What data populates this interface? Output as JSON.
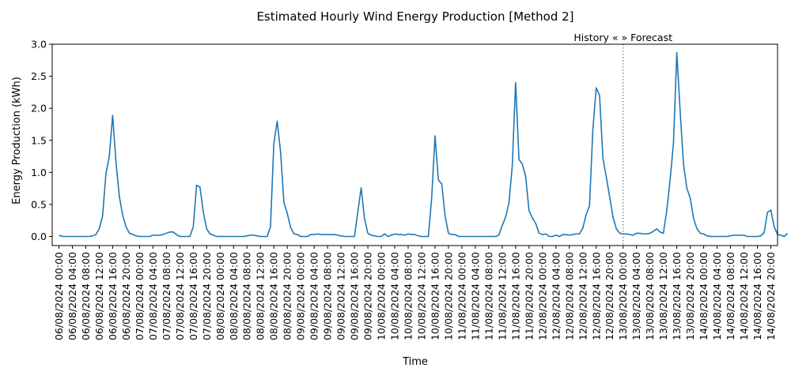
{
  "chart_data": {
    "type": "line",
    "title": "Estimated Hourly Wind Energy Production [Method 2]",
    "xlabel": "Time",
    "ylabel": "Energy Production (kWh)",
    "ylim": [
      -0.13,
      3.0
    ],
    "yticks": [
      "0.0",
      "0.5",
      "1.0",
      "1.5",
      "2.0",
      "2.5",
      "3.0"
    ],
    "x_start_hours": -2,
    "x_end_hours": 214,
    "grid": false,
    "annotation": {
      "label": "History «  » Forecast",
      "x_hours": 168
    },
    "xticks": [
      {
        "h": 0,
        "label": "06/08/2024 00:00"
      },
      {
        "h": 4,
        "label": "06/08/2024 04:00"
      },
      {
        "h": 8,
        "label": "06/08/2024 08:00"
      },
      {
        "h": 12,
        "label": "06/08/2024 12:00"
      },
      {
        "h": 16,
        "label": "06/08/2024 16:00"
      },
      {
        "h": 20,
        "label": "06/08/2024 20:00"
      },
      {
        "h": 24,
        "label": "07/08/2024 00:00"
      },
      {
        "h": 28,
        "label": "07/08/2024 04:00"
      },
      {
        "h": 32,
        "label": "07/08/2024 08:00"
      },
      {
        "h": 36,
        "label": "07/08/2024 12:00"
      },
      {
        "h": 40,
        "label": "07/08/2024 16:00"
      },
      {
        "h": 44,
        "label": "07/08/2024 20:00"
      },
      {
        "h": 48,
        "label": "08/08/2024 00:00"
      },
      {
        "h": 52,
        "label": "08/08/2024 04:00"
      },
      {
        "h": 56,
        "label": "08/08/2024 08:00"
      },
      {
        "h": 60,
        "label": "08/08/2024 12:00"
      },
      {
        "h": 64,
        "label": "08/08/2024 16:00"
      },
      {
        "h": 68,
        "label": "08/08/2024 20:00"
      },
      {
        "h": 72,
        "label": "09/08/2024 00:00"
      },
      {
        "h": 76,
        "label": "09/08/2024 04:00"
      },
      {
        "h": 80,
        "label": "09/08/2024 08:00"
      },
      {
        "h": 84,
        "label": "09/08/2024 12:00"
      },
      {
        "h": 88,
        "label": "09/08/2024 16:00"
      },
      {
        "h": 92,
        "label": "09/08/2024 20:00"
      },
      {
        "h": 96,
        "label": "10/08/2024 00:00"
      },
      {
        "h": 100,
        "label": "10/08/2024 04:00"
      },
      {
        "h": 104,
        "label": "10/08/2024 08:00"
      },
      {
        "h": 108,
        "label": "10/08/2024 12:00"
      },
      {
        "h": 112,
        "label": "10/08/2024 16:00"
      },
      {
        "h": 116,
        "label": "10/08/2024 20:00"
      },
      {
        "h": 120,
        "label": "11/08/2024 00:00"
      },
      {
        "h": 124,
        "label": "11/08/2024 04:00"
      },
      {
        "h": 128,
        "label": "11/08/2024 08:00"
      },
      {
        "h": 132,
        "label": "11/08/2024 12:00"
      },
      {
        "h": 136,
        "label": "11/08/2024 16:00"
      },
      {
        "h": 140,
        "label": "11/08/2024 20:00"
      },
      {
        "h": 144,
        "label": "12/08/2024 00:00"
      },
      {
        "h": 148,
        "label": "12/08/2024 04:00"
      },
      {
        "h": 152,
        "label": "12/08/2024 08:00"
      },
      {
        "h": 156,
        "label": "12/08/2024 12:00"
      },
      {
        "h": 160,
        "label": "12/08/2024 16:00"
      },
      {
        "h": 164,
        "label": "12/08/2024 20:00"
      },
      {
        "h": 168,
        "label": "13/08/2024 00:00"
      },
      {
        "h": 172,
        "label": "13/08/2024 04:00"
      },
      {
        "h": 176,
        "label": "13/08/2024 08:00"
      },
      {
        "h": 180,
        "label": "13/08/2024 12:00"
      },
      {
        "h": 184,
        "label": "13/08/2024 16:00"
      },
      {
        "h": 188,
        "label": "13/08/2024 20:00"
      },
      {
        "h": 192,
        "label": "14/08/2024 00:00"
      },
      {
        "h": 196,
        "label": "14/08/2024 04:00"
      },
      {
        "h": 200,
        "label": "14/08/2024 08:00"
      },
      {
        "h": 204,
        "label": "14/08/2024 12:00"
      },
      {
        "h": 208,
        "label": "14/08/2024 16:00"
      },
      {
        "h": 212,
        "label": "14/08/2024 20:00"
      }
    ],
    "series": [
      {
        "color": "#1f77b4",
        "values": [
          [
            0,
            0.02
          ],
          [
            1,
            0.0
          ],
          [
            2,
            0.0
          ],
          [
            3,
            0.0
          ],
          [
            4,
            0.0
          ],
          [
            5,
            0.0
          ],
          [
            6,
            0.0
          ],
          [
            7,
            0.0
          ],
          [
            8,
            0.0
          ],
          [
            9,
            0.0
          ],
          [
            10,
            0.01
          ],
          [
            11,
            0.03
          ],
          [
            12,
            0.12
          ],
          [
            13,
            0.32
          ],
          [
            14,
            0.98
          ],
          [
            15,
            1.25
          ],
          [
            16,
            1.89
          ],
          [
            17,
            1.15
          ],
          [
            18,
            0.62
          ],
          [
            19,
            0.33
          ],
          [
            20,
            0.15
          ],
          [
            21,
            0.05
          ],
          [
            22,
            0.03
          ],
          [
            23,
            0.01
          ],
          [
            24,
            0.0
          ],
          [
            25,
            0.0
          ],
          [
            26,
            0.0
          ],
          [
            27,
            0.0
          ],
          [
            28,
            0.02
          ],
          [
            29,
            0.02
          ],
          [
            30,
            0.02
          ],
          [
            31,
            0.03
          ],
          [
            32,
            0.05
          ],
          [
            33,
            0.07
          ],
          [
            34,
            0.07
          ],
          [
            35,
            0.03
          ],
          [
            36,
            0.0
          ],
          [
            37,
            0.0
          ],
          [
            38,
            0.0
          ],
          [
            39,
            0.0
          ],
          [
            40,
            0.15
          ],
          [
            41,
            0.8
          ],
          [
            42,
            0.77
          ],
          [
            43,
            0.38
          ],
          [
            44,
            0.12
          ],
          [
            45,
            0.04
          ],
          [
            46,
            0.02
          ],
          [
            47,
            0.0
          ],
          [
            48,
            0.0
          ],
          [
            49,
            0.0
          ],
          [
            50,
            0.0
          ],
          [
            51,
            0.0
          ],
          [
            52,
            0.0
          ],
          [
            53,
            0.0
          ],
          [
            54,
            0.0
          ],
          [
            55,
            0.0
          ],
          [
            56,
            0.01
          ],
          [
            57,
            0.02
          ],
          [
            58,
            0.02
          ],
          [
            59,
            0.01
          ],
          [
            60,
            0.0
          ],
          [
            61,
            0.0
          ],
          [
            62,
            0.0
          ],
          [
            63,
            0.15
          ],
          [
            64,
            1.45
          ],
          [
            65,
            1.8
          ],
          [
            66,
            1.32
          ],
          [
            67,
            0.53
          ],
          [
            68,
            0.36
          ],
          [
            69,
            0.14
          ],
          [
            70,
            0.04
          ],
          [
            71,
            0.03
          ],
          [
            72,
            0.0
          ],
          [
            73,
            0.0
          ],
          [
            74,
            0.0
          ],
          [
            75,
            0.03
          ],
          [
            76,
            0.03
          ],
          [
            77,
            0.04
          ],
          [
            78,
            0.03
          ],
          [
            79,
            0.03
          ],
          [
            80,
            0.03
          ],
          [
            81,
            0.03
          ],
          [
            82,
            0.03
          ],
          [
            83,
            0.02
          ],
          [
            84,
            0.01
          ],
          [
            85,
            0.0
          ],
          [
            86,
            0.0
          ],
          [
            87,
            0.0
          ],
          [
            88,
            0.0
          ],
          [
            89,
            0.38
          ],
          [
            90,
            0.76
          ],
          [
            91,
            0.28
          ],
          [
            92,
            0.05
          ],
          [
            93,
            0.02
          ],
          [
            94,
            0.01
          ],
          [
            95,
            0.0
          ],
          [
            96,
            0.0
          ],
          [
            97,
            0.04
          ],
          [
            98,
            0.0
          ],
          [
            99,
            0.02
          ],
          [
            100,
            0.04
          ],
          [
            101,
            0.03
          ],
          [
            102,
            0.03
          ],
          [
            103,
            0.02
          ],
          [
            104,
            0.04
          ],
          [
            105,
            0.03
          ],
          [
            106,
            0.03
          ],
          [
            107,
            0.01
          ],
          [
            108,
            0.0
          ],
          [
            109,
            0.0
          ],
          [
            110,
            0.0
          ],
          [
            111,
            0.6
          ],
          [
            112,
            1.57
          ],
          [
            113,
            0.88
          ],
          [
            114,
            0.82
          ],
          [
            115,
            0.32
          ],
          [
            116,
            0.05
          ],
          [
            117,
            0.03
          ],
          [
            118,
            0.03
          ],
          [
            119,
            0.0
          ],
          [
            120,
            0.0
          ],
          [
            121,
            0.0
          ],
          [
            122,
            0.0
          ],
          [
            123,
            0.0
          ],
          [
            124,
            0.0
          ],
          [
            125,
            0.0
          ],
          [
            126,
            0.0
          ],
          [
            127,
            0.0
          ],
          [
            128,
            0.0
          ],
          [
            129,
            0.0
          ],
          [
            130,
            0.0
          ],
          [
            131,
            0.02
          ],
          [
            132,
            0.17
          ],
          [
            133,
            0.3
          ],
          [
            134,
            0.52
          ],
          [
            135,
            1.1
          ],
          [
            136,
            2.4
          ],
          [
            137,
            1.2
          ],
          [
            138,
            1.13
          ],
          [
            139,
            0.93
          ],
          [
            140,
            0.4
          ],
          [
            141,
            0.29
          ],
          [
            142,
            0.2
          ],
          [
            143,
            0.05
          ],
          [
            144,
            0.03
          ],
          [
            145,
            0.04
          ],
          [
            146,
            0.0
          ],
          [
            147,
            0.0
          ],
          [
            148,
            0.02
          ],
          [
            149,
            0.0
          ],
          [
            150,
            0.03
          ],
          [
            151,
            0.03
          ],
          [
            152,
            0.02
          ],
          [
            153,
            0.03
          ],
          [
            154,
            0.04
          ],
          [
            155,
            0.04
          ],
          [
            156,
            0.13
          ],
          [
            157,
            0.34
          ],
          [
            158,
            0.48
          ],
          [
            159,
            1.67
          ],
          [
            160,
            2.32
          ],
          [
            161,
            2.2
          ],
          [
            162,
            1.22
          ],
          [
            163,
            0.93
          ],
          [
            164,
            0.62
          ],
          [
            165,
            0.3
          ],
          [
            166,
            0.12
          ],
          [
            167,
            0.05
          ],
          [
            168,
            0.04
          ],
          [
            169,
            0.04
          ],
          [
            170,
            0.03
          ],
          [
            171,
            0.02
          ],
          [
            172,
            0.05
          ],
          [
            173,
            0.05
          ],
          [
            174,
            0.04
          ],
          [
            175,
            0.04
          ],
          [
            176,
            0.05
          ],
          [
            177,
            0.08
          ],
          [
            178,
            0.12
          ],
          [
            179,
            0.07
          ],
          [
            180,
            0.05
          ],
          [
            181,
            0.4
          ],
          [
            182,
            0.88
          ],
          [
            183,
            1.45
          ],
          [
            184,
            2.87
          ],
          [
            185,
            1.95
          ],
          [
            186,
            1.12
          ],
          [
            187,
            0.75
          ],
          [
            188,
            0.6
          ],
          [
            189,
            0.28
          ],
          [
            190,
            0.12
          ],
          [
            191,
            0.05
          ],
          [
            192,
            0.04
          ],
          [
            193,
            0.01
          ],
          [
            194,
            0.0
          ],
          [
            195,
            0.0
          ],
          [
            196,
            0.0
          ],
          [
            197,
            0.0
          ],
          [
            198,
            0.0
          ],
          [
            199,
            0.0
          ],
          [
            200,
            0.01
          ],
          [
            201,
            0.02
          ],
          [
            202,
            0.02
          ],
          [
            203,
            0.02
          ],
          [
            204,
            0.02
          ],
          [
            205,
            0.0
          ],
          [
            206,
            0.0
          ],
          [
            207,
            0.0
          ],
          [
            208,
            0.0
          ],
          [
            209,
            0.01
          ],
          [
            210,
            0.06
          ],
          [
            211,
            0.38
          ],
          [
            212,
            0.41
          ],
          [
            213,
            0.15
          ],
          [
            214,
            0.03
          ],
          [
            215,
            0.02
          ],
          [
            216,
            0.0
          ],
          [
            217,
            0.05
          ]
        ]
      }
    ],
    "colors": {
      "line": "#1f77b4",
      "divider": "#7f7f7f",
      "axes": "#000000"
    }
  }
}
